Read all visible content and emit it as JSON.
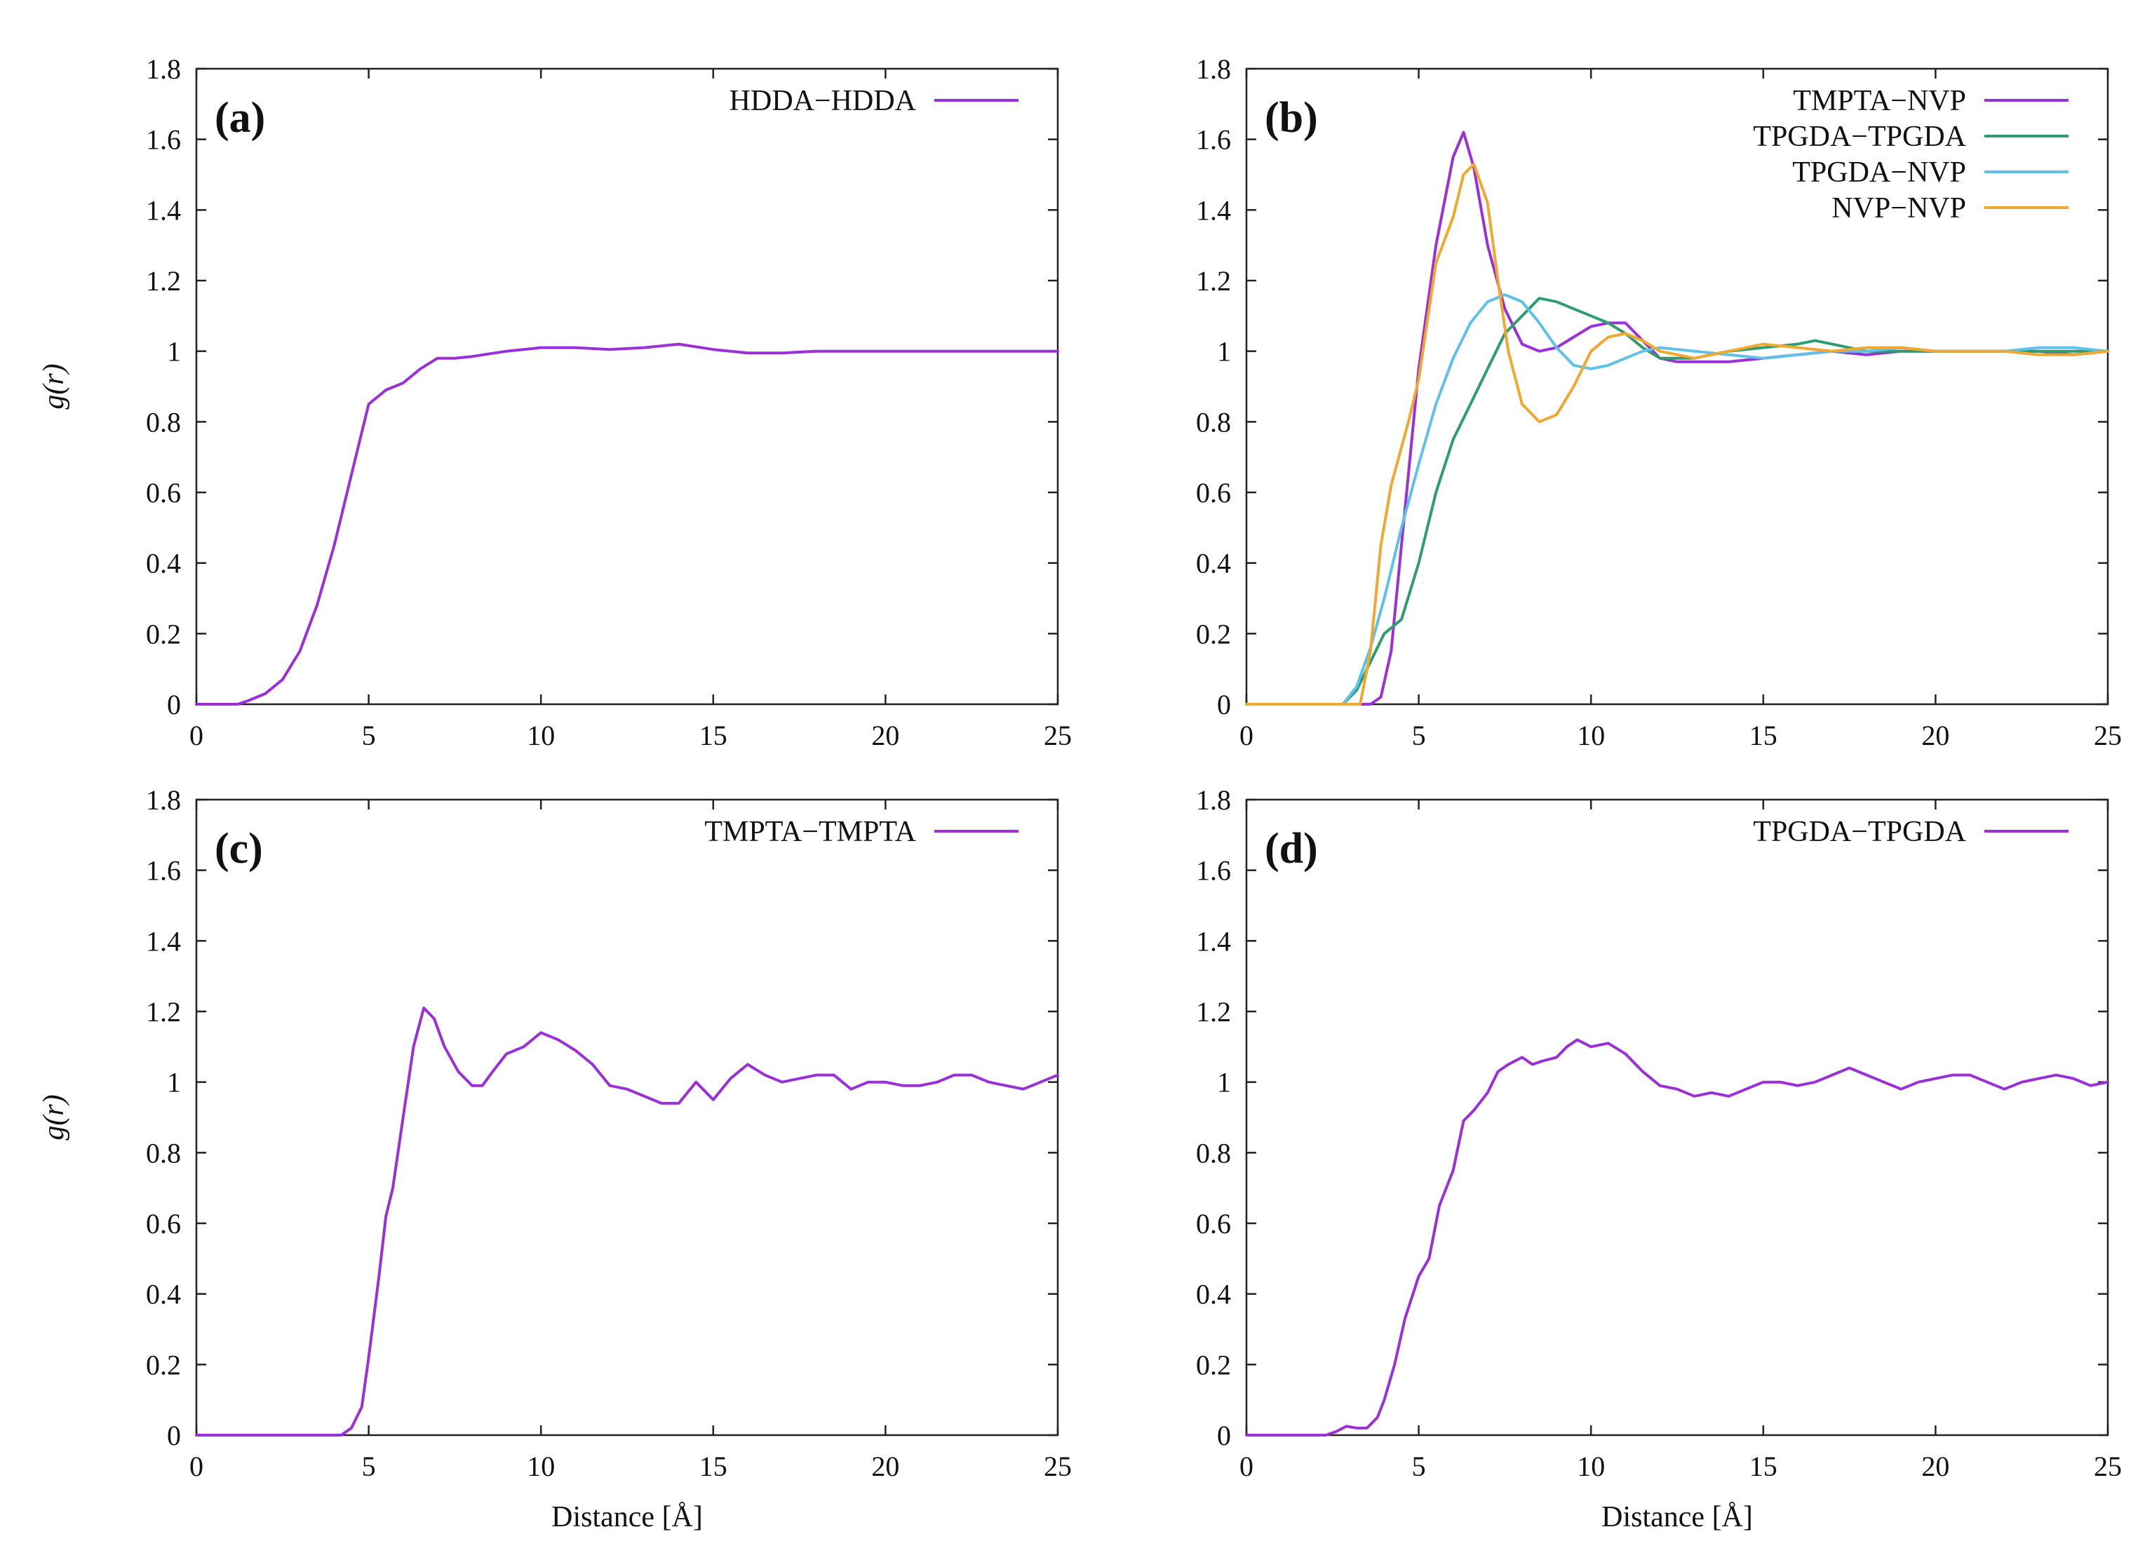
{
  "chart_data": [
    {
      "type": "line",
      "panel": "(a)",
      "xlabel": "",
      "ylabel": "g(r)",
      "xlim": [
        0,
        25
      ],
      "ylim": [
        0,
        1.8
      ],
      "xticks": [
        "0",
        "5",
        "10",
        "15",
        "20",
        "25"
      ],
      "yticks": [
        "0",
        "0.2",
        "0.4",
        "0.6",
        "0.8",
        "1",
        "1.2",
        "1.4",
        "1.6",
        "1.8"
      ],
      "legend_position": "top-right",
      "series": [
        {
          "name": "HDDA−HDDA",
          "color": "#9b30d9",
          "x": [
            0,
            1.2,
            1.5,
            2.0,
            2.5,
            3.0,
            3.5,
            4.0,
            4.5,
            5.0,
            5.5,
            6.0,
            6.5,
            7.0,
            7.5,
            8.0,
            9.0,
            10.0,
            11.0,
            12.0,
            13.0,
            14.0,
            15.0,
            16.0,
            17.0,
            18.0,
            19.0,
            20.0,
            21.0,
            22.0,
            23.0,
            24.0,
            25.0
          ],
          "y": [
            0,
            0,
            0.01,
            0.03,
            0.07,
            0.15,
            0.28,
            0.45,
            0.65,
            0.85,
            0.89,
            0.91,
            0.95,
            0.98,
            0.98,
            0.985,
            1.0,
            1.01,
            1.01,
            1.005,
            1.01,
            1.02,
            1.005,
            0.995,
            0.995,
            1.0,
            1.0,
            1.0,
            1.0,
            1.0,
            1.0,
            1.0,
            1.0
          ]
        }
      ]
    },
    {
      "type": "line",
      "panel": "(b)",
      "xlabel": "",
      "ylabel": "",
      "xlim": [
        0,
        25
      ],
      "ylim": [
        0,
        1.8
      ],
      "xticks": [
        "0",
        "5",
        "10",
        "15",
        "20",
        "25"
      ],
      "yticks": [
        "0",
        "0.2",
        "0.4",
        "0.6",
        "0.8",
        "1",
        "1.2",
        "1.4",
        "1.6",
        "1.8"
      ],
      "legend_position": "top-right",
      "series": [
        {
          "name": "TMPTA−NVP",
          "color": "#9b30d9",
          "x": [
            0,
            3.6,
            3.9,
            4.2,
            4.5,
            5.0,
            5.5,
            6.0,
            6.3,
            6.6,
            7.0,
            7.5,
            8.0,
            8.5,
            9.0,
            9.5,
            10.0,
            10.5,
            11.0,
            11.5,
            12.0,
            12.5,
            13.0,
            14.0,
            15.0,
            16.0,
            17.0,
            18.0,
            19.0,
            20.0,
            21.0,
            22.0,
            23.0,
            24.0,
            25.0
          ],
          "y": [
            0,
            0,
            0.02,
            0.15,
            0.45,
            0.95,
            1.3,
            1.55,
            1.62,
            1.52,
            1.3,
            1.12,
            1.02,
            1.0,
            1.01,
            1.04,
            1.07,
            1.08,
            1.08,
            1.03,
            0.98,
            0.97,
            0.97,
            0.97,
            0.98,
            0.99,
            1.0,
            0.99,
            1.0,
            1.0,
            1.0,
            1.0,
            1.0,
            0.99,
            1.0
          ]
        },
        {
          "name": "TPGDA−TPGDA",
          "color": "#2e9e6e",
          "x": [
            0,
            2.8,
            3.2,
            3.6,
            4.0,
            4.5,
            5.0,
            5.5,
            6.0,
            6.5,
            7.0,
            7.5,
            8.0,
            8.5,
            9.0,
            9.5,
            10.0,
            10.5,
            11.0,
            11.5,
            12.0,
            13.0,
            14.0,
            15.0,
            16.0,
            16.5,
            17.0,
            18.0,
            19.0,
            20.0,
            21.0,
            22.0,
            23.0,
            24.0,
            25.0
          ],
          "y": [
            0,
            0,
            0.04,
            0.12,
            0.2,
            0.24,
            0.4,
            0.6,
            0.75,
            0.85,
            0.95,
            1.05,
            1.1,
            1.15,
            1.14,
            1.12,
            1.1,
            1.08,
            1.05,
            1.01,
            0.98,
            0.98,
            1.0,
            1.01,
            1.02,
            1.03,
            1.02,
            1.0,
            1.0,
            1.0,
            1.0,
            1.0,
            1.0,
            1.0,
            1.0
          ]
        },
        {
          "name": "TPGDA−NVP",
          "color": "#5fc0e8",
          "x": [
            0,
            2.8,
            3.2,
            3.6,
            4.0,
            4.5,
            5.0,
            5.5,
            6.0,
            6.5,
            7.0,
            7.5,
            8.0,
            8.5,
            9.0,
            9.5,
            10.0,
            10.5,
            11.0,
            11.5,
            12.0,
            13.0,
            14.0,
            15.0,
            16.0,
            17.0,
            18.0,
            19.0,
            20.0,
            21.0,
            22.0,
            23.0,
            24.0,
            25.0
          ],
          "y": [
            0,
            0,
            0.05,
            0.16,
            0.3,
            0.5,
            0.68,
            0.85,
            0.98,
            1.08,
            1.14,
            1.16,
            1.14,
            1.08,
            1.01,
            0.96,
            0.95,
            0.96,
            0.98,
            1.0,
            1.01,
            1.0,
            0.99,
            0.98,
            0.99,
            1.0,
            1.0,
            1.01,
            1.0,
            1.0,
            1.0,
            1.01,
            1.01,
            1.0
          ]
        },
        {
          "name": "NVP−NVP",
          "color": "#f0a830",
          "x": [
            0,
            3.3,
            3.6,
            3.9,
            4.2,
            4.7,
            5.0,
            5.5,
            6.0,
            6.3,
            6.6,
            7.0,
            7.3,
            7.6,
            8.0,
            8.5,
            9.0,
            9.5,
            10.0,
            10.5,
            11.0,
            11.5,
            12.0,
            13.0,
            14.0,
            15.0,
            16.0,
            17.0,
            18.0,
            19.0,
            20.0,
            21.0,
            22.0,
            23.0,
            24.0,
            25.0
          ],
          "y": [
            0,
            0,
            0.15,
            0.45,
            0.62,
            0.8,
            0.92,
            1.25,
            1.38,
            1.5,
            1.53,
            1.42,
            1.2,
            1.0,
            0.85,
            0.8,
            0.82,
            0.9,
            1.0,
            1.04,
            1.05,
            1.03,
            1.0,
            0.98,
            1.0,
            1.02,
            1.01,
            1.0,
            1.01,
            1.01,
            1.0,
            1.0,
            1.0,
            0.99,
            0.99,
            1.0
          ]
        }
      ]
    },
    {
      "type": "line",
      "panel": "(c)",
      "xlabel": "Distance [Å]",
      "ylabel": "g(r)",
      "xlim": [
        0,
        25
      ],
      "ylim": [
        0,
        1.8
      ],
      "xticks": [
        "0",
        "5",
        "10",
        "15",
        "20",
        "25"
      ],
      "yticks": [
        "0",
        "0.2",
        "0.4",
        "0.6",
        "0.8",
        "1",
        "1.2",
        "1.4",
        "1.6",
        "1.8"
      ],
      "legend_position": "top-right",
      "series": [
        {
          "name": "TMPTA−TMPTA",
          "color": "#9b30d9",
          "x": [
            0,
            4.2,
            4.5,
            4.8,
            5.0,
            5.3,
            5.5,
            5.7,
            6.0,
            6.3,
            6.6,
            6.9,
            7.2,
            7.6,
            8.0,
            8.3,
            8.6,
            9.0,
            9.5,
            10.0,
            10.5,
            11.0,
            11.5,
            12.0,
            12.5,
            13.0,
            13.5,
            14.0,
            14.5,
            15.0,
            15.5,
            16.0,
            16.5,
            17.0,
            17.5,
            18.0,
            18.5,
            19.0,
            19.5,
            20.0,
            20.5,
            21.0,
            21.5,
            22.0,
            22.5,
            23.0,
            23.5,
            24.0,
            24.5,
            25.0
          ],
          "y": [
            0,
            0,
            0.02,
            0.08,
            0.22,
            0.45,
            0.62,
            0.7,
            0.9,
            1.1,
            1.21,
            1.18,
            1.1,
            1.03,
            0.99,
            0.99,
            1.03,
            1.08,
            1.1,
            1.14,
            1.12,
            1.09,
            1.05,
            0.99,
            0.98,
            0.96,
            0.94,
            0.94,
            1.0,
            0.95,
            1.01,
            1.05,
            1.02,
            1.0,
            1.01,
            1.02,
            1.02,
            0.98,
            1.0,
            1.0,
            0.99,
            0.99,
            1.0,
            1.02,
            1.02,
            1.0,
            0.99,
            0.98,
            1.0,
            1.02
          ]
        }
      ]
    },
    {
      "type": "line",
      "panel": "(d)",
      "xlabel": "Distance [Å]",
      "ylabel": "",
      "xlim": [
        0,
        25
      ],
      "ylim": [
        0,
        1.8
      ],
      "xticks": [
        "0",
        "5",
        "10",
        "15",
        "20",
        "25"
      ],
      "yticks": [
        "0",
        "0.2",
        "0.4",
        "0.6",
        "0.8",
        "1",
        "1.2",
        "1.4",
        "1.6",
        "1.8"
      ],
      "legend_position": "top-right",
      "series": [
        {
          "name": "TPGDA−TPGDA",
          "color": "#9b30d9",
          "x": [
            0,
            2.3,
            2.6,
            2.9,
            3.2,
            3.5,
            3.8,
            4.0,
            4.3,
            4.6,
            5.0,
            5.3,
            5.6,
            6.0,
            6.3,
            6.6,
            7.0,
            7.3,
            7.6,
            8.0,
            8.3,
            8.6,
            9.0,
            9.3,
            9.6,
            10.0,
            10.5,
            11.0,
            11.5,
            12.0,
            12.5,
            13.0,
            13.5,
            14.0,
            14.5,
            15.0,
            15.5,
            16.0,
            16.5,
            17.0,
            17.5,
            18.0,
            18.5,
            19.0,
            19.5,
            20.0,
            20.5,
            21.0,
            21.5,
            22.0,
            22.5,
            23.0,
            23.5,
            24.0,
            24.5,
            25.0
          ],
          "y": [
            0,
            0,
            0.01,
            0.025,
            0.02,
            0.02,
            0.05,
            0.1,
            0.2,
            0.33,
            0.45,
            0.5,
            0.65,
            0.75,
            0.89,
            0.92,
            0.97,
            1.03,
            1.05,
            1.07,
            1.05,
            1.06,
            1.07,
            1.1,
            1.12,
            1.1,
            1.11,
            1.08,
            1.03,
            0.99,
            0.98,
            0.96,
            0.97,
            0.96,
            0.98,
            1.0,
            1.0,
            0.99,
            1.0,
            1.02,
            1.04,
            1.02,
            1.0,
            0.98,
            1.0,
            1.01,
            1.02,
            1.02,
            1.0,
            0.98,
            1.0,
            1.01,
            1.02,
            1.01,
            0.99,
            1.0
          ]
        }
      ]
    }
  ]
}
